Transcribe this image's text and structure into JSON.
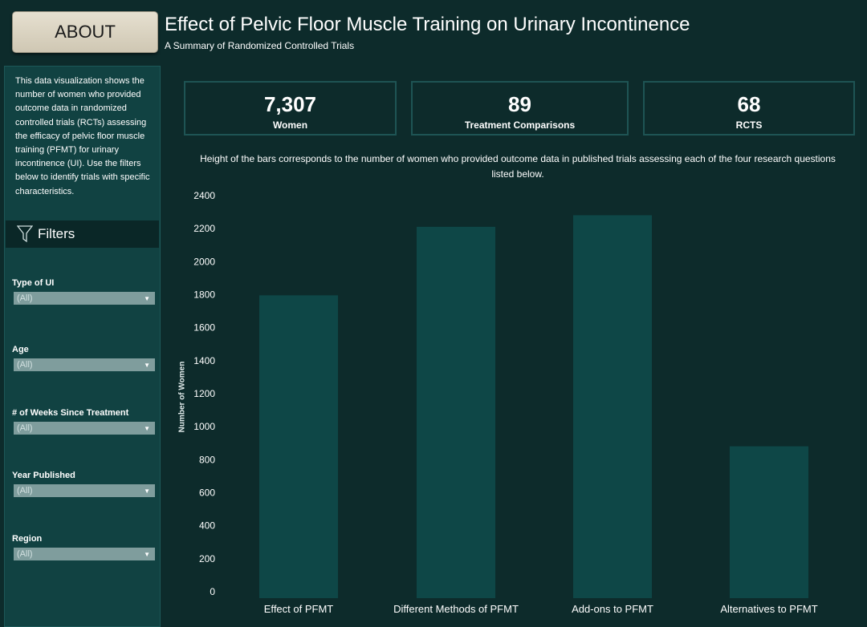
{
  "header": {
    "about_label": "ABOUT",
    "title": "Effect of Pelvic Floor Muscle Training on Urinary Incontinence",
    "subtitle": "A Summary of Randomized Controlled Trials"
  },
  "sidebar": {
    "intro": "This data visualization shows the number of women who provided outcome data in randomized controlled trials (RCTs) assessing the efficacy of pelvic floor muscle training (PFMT) for urinary incontinence (UI). Use the filters below to identify trials with specific characteristics.",
    "filters_label": "Filters",
    "filters": [
      {
        "label": "Type of UI",
        "value": "(All)"
      },
      {
        "label": "Age",
        "value": "(All)"
      },
      {
        "label": "# of Weeks Since Treatment",
        "value": "(All)"
      },
      {
        "label": "Year Published",
        "value": "(All)"
      },
      {
        "label": "Region",
        "value": "(All)"
      }
    ]
  },
  "kpis": [
    {
      "value": "7,307",
      "label": "Women"
    },
    {
      "value": "89",
      "label": "Treatment Comparisons"
    },
    {
      "value": "68",
      "label": "RCTS"
    }
  ],
  "chart_description": "Height of the bars corresponds to the number of women who provided outcome data in published trials assessing each of the four research questions listed below.",
  "colors": {
    "background": "#0d2b2b",
    "bar": "#0e4747",
    "sidebar": "#114242"
  },
  "chart_data": {
    "type": "bar",
    "categories": [
      "Effect of PFMT",
      "Different Methods of PFMT",
      "Add-ons to PFMT",
      "Alternatives to PFMT"
    ],
    "values": [
      1835,
      2250,
      2320,
      920
    ],
    "ylabel": "Number of Women",
    "ylim": [
      0,
      2400
    ],
    "yticks": [
      0,
      200,
      400,
      600,
      800,
      1000,
      1200,
      1400,
      1600,
      1800,
      2000,
      2200,
      2400
    ],
    "grid": false
  }
}
